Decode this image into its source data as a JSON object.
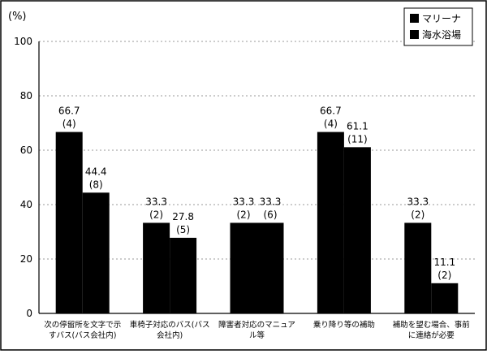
{
  "chart_data": {
    "type": "bar",
    "title": "",
    "xlabel": "",
    "ylabel": "(%)",
    "ylim": [
      0,
      100
    ],
    "yticks": [
      0,
      20,
      40,
      60,
      80,
      100
    ],
    "grid": true,
    "legend_position": "top-right",
    "categories": [
      [
        "次の停留所を文字で示",
        "すバス(バス会社内)"
      ],
      [
        "車椅子対応のバス(バス",
        "会社内)"
      ],
      [
        "障害者対応のマニュア",
        "ル等"
      ],
      [
        "乗り降り等の補助"
      ],
      [
        "補助を望む場合、事前",
        "に連絡が必要"
      ]
    ],
    "series": [
      {
        "name": "マリーナ",
        "color": "#000000",
        "values": [
          66.7,
          33.3,
          33.3,
          66.7,
          33.3
        ],
        "labels": [
          "66.7",
          "33.3",
          "33.3",
          "66.7",
          "33.3"
        ],
        "counts": [
          "(4)",
          "(2)",
          "(2)",
          "(4)",
          "(2)"
        ]
      },
      {
        "name": "海水浴場",
        "color": "#000000",
        "values": [
          44.4,
          27.8,
          33.3,
          61.1,
          11.1
        ],
        "labels": [
          "44.4",
          "27.8",
          "33.3",
          "61.1",
          "11.1"
        ],
        "counts": [
          "(8)",
          "(5)",
          "(6)",
          "(11)",
          "(2)"
        ]
      }
    ]
  }
}
